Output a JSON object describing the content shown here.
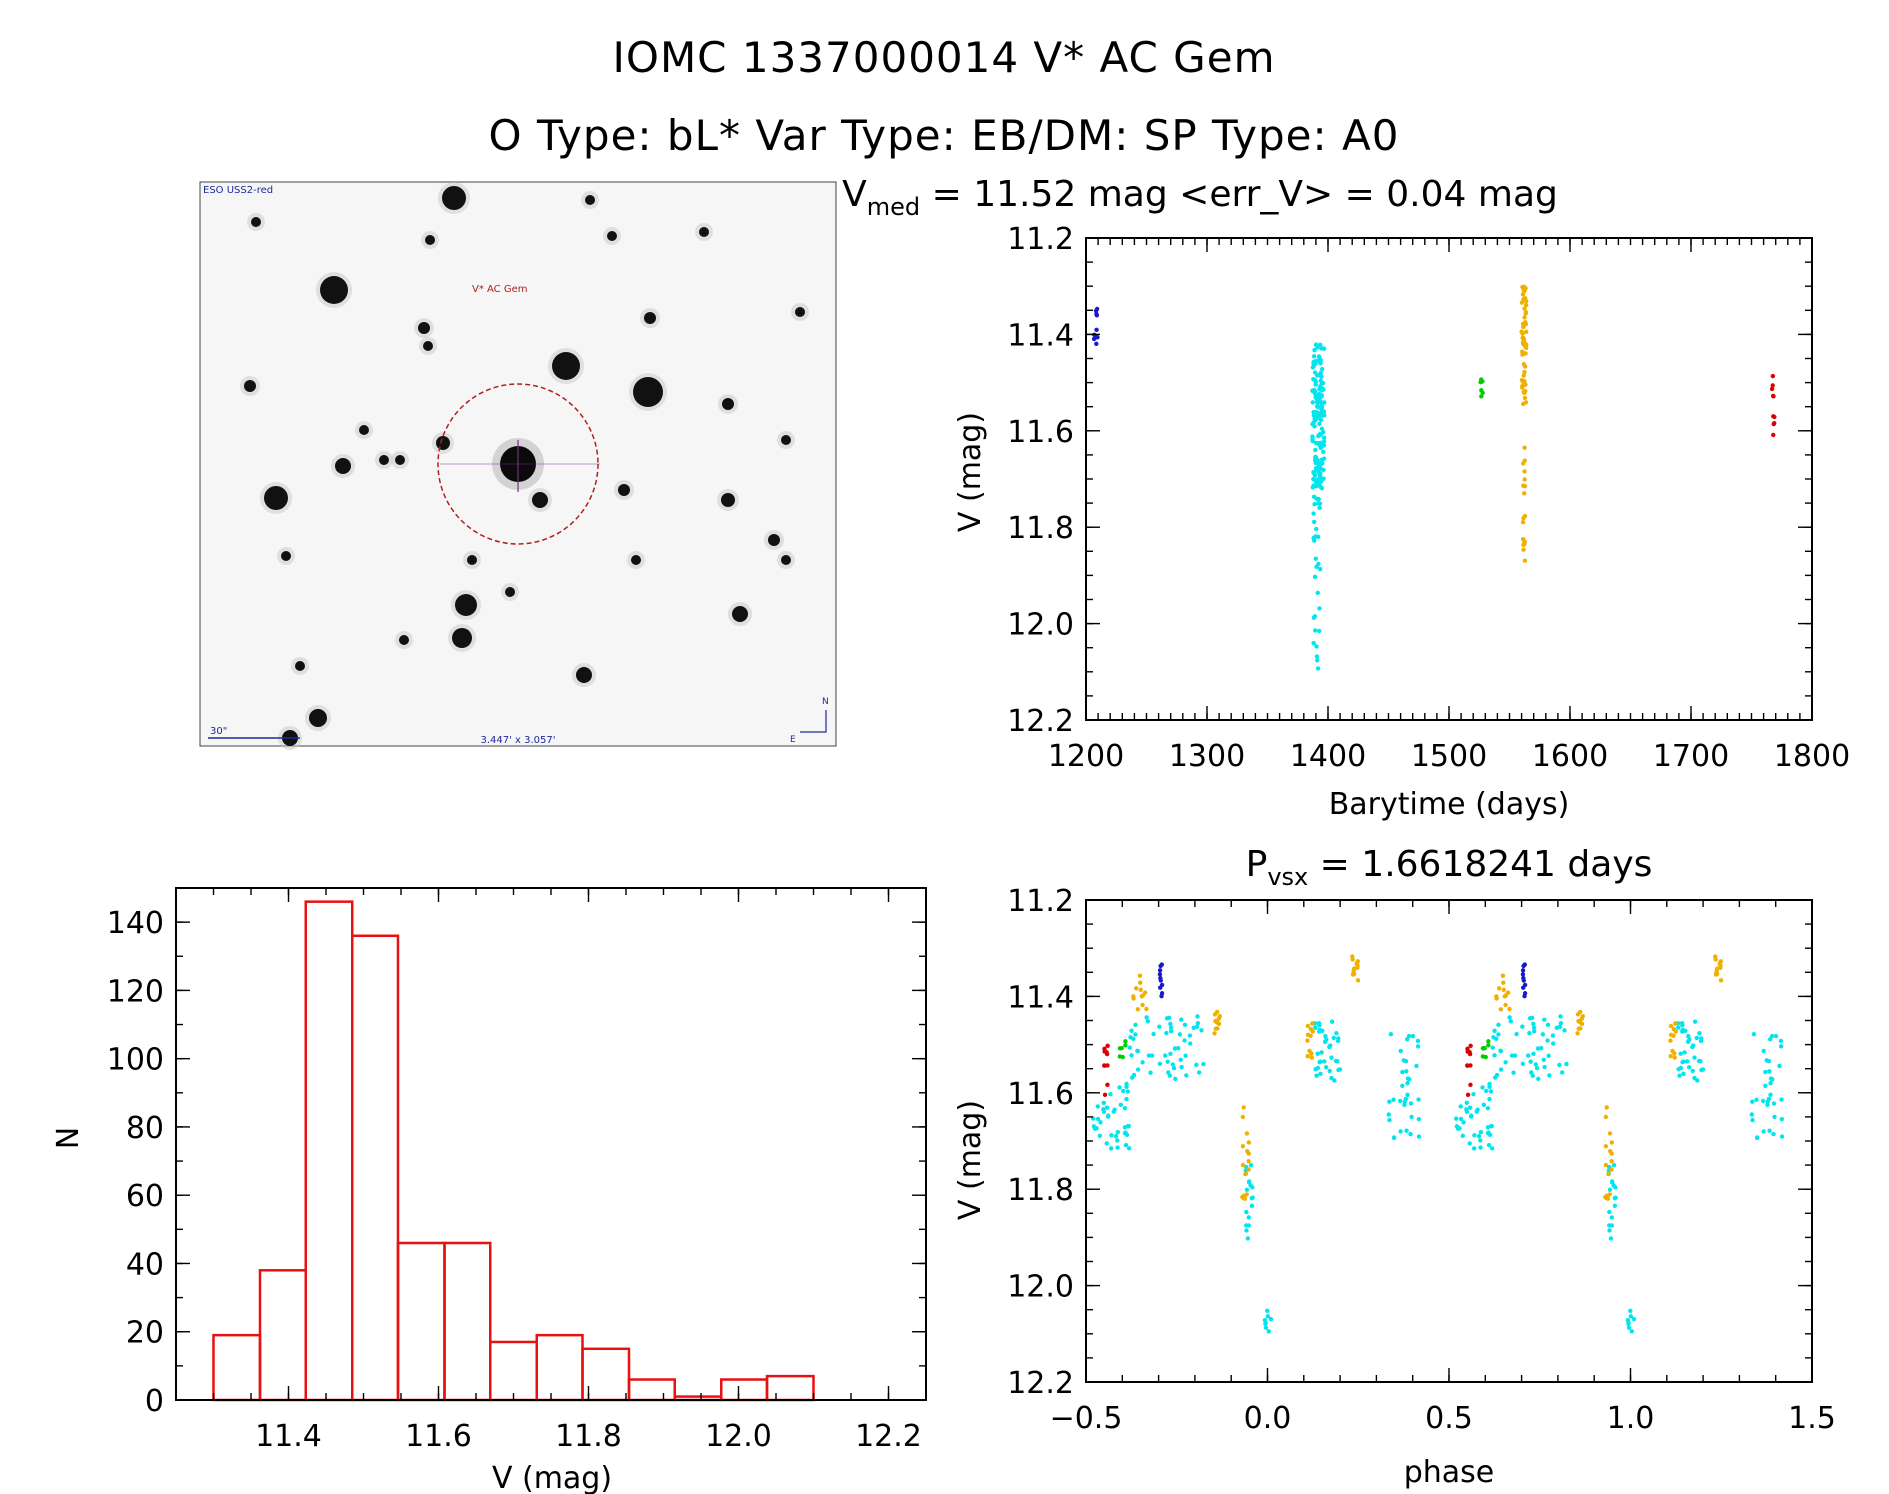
{
  "header": {
    "title_line1": "IOMC 1337000014    V* AC Gem",
    "title_line2": "O Type: bL*  Var Type: EB/DM:  SP Type: A0"
  },
  "finder": {
    "label_survey": "ESO USS2-red",
    "label_target": "V* AC Gem",
    "label_scale": "30\"",
    "label_fov": "3.447' x 3.057'",
    "label_north": "N",
    "label_east": "E",
    "colors": {
      "circle": "#b02020",
      "annot": "#1c2a9c",
      "target_label": "#b02020"
    }
  },
  "chart_data": [
    {
      "type": "scatter",
      "title": "Vmed = 11.52 mag <err_V> = 0.04 mag",
      "title_parts": {
        "lead": "V",
        "sub": "med",
        "rest": " = 11.52 mag <err_V> = 0.04 mag"
      },
      "xlabel": "Barytime (days)",
      "ylabel": "V (mag)",
      "xlim": [
        1200,
        1800
      ],
      "ylim": [
        11.2,
        12.2
      ],
      "y_inverted": true,
      "xticks": [
        1200,
        1300,
        1400,
        1500,
        1600,
        1700,
        1800
      ],
      "xtick_labels": [
        "1200",
        "1300",
        "1400",
        "1500",
        "1600",
        "1700",
        "1800"
      ],
      "yticks": [
        11.2,
        11.4,
        11.6,
        11.8,
        12.0,
        12.2
      ],
      "ytick_labels": [
        "11.2",
        "11.4",
        "11.6",
        "11.8",
        "12.0",
        "12.2"
      ],
      "series": [
        {
          "name": "season-1",
          "color": "#1818cc",
          "x_center": 1208,
          "x_spread": 2,
          "y_min": 11.33,
          "y_max": 11.42,
          "n": 10
        },
        {
          "name": "season-2",
          "color": "#00e5ee",
          "x_center": 1392,
          "x_spread": 5,
          "y_min": 11.42,
          "y_max": 11.72,
          "n": 160
        },
        {
          "name": "season-2-faint",
          "color": "#00e5ee",
          "x_center": 1391,
          "x_spread": 3,
          "y_min": 11.72,
          "y_max": 12.1,
          "n": 30
        },
        {
          "name": "season-3",
          "color": "#00cc00",
          "x_center": 1527,
          "x_spread": 1,
          "y_min": 11.49,
          "y_max": 11.53,
          "n": 6
        },
        {
          "name": "season-4",
          "color": "#f0b000",
          "x_center": 1562,
          "x_spread": 2,
          "y_min": 11.3,
          "y_max": 11.55,
          "n": 60
        },
        {
          "name": "season-4-faint",
          "color": "#f0b000",
          "x_center": 1562,
          "x_spread": 1,
          "y_min": 11.63,
          "y_max": 11.87,
          "n": 18
        },
        {
          "name": "season-5",
          "color": "#dd0000",
          "x_center": 1768,
          "x_spread": 1,
          "y_min": 11.47,
          "y_max": 11.61,
          "n": 10
        }
      ]
    },
    {
      "type": "bar",
      "subtype": "histogram",
      "title": "",
      "xlabel": "V (mag)",
      "ylabel": "N",
      "xlim": [
        11.25,
        12.25
      ],
      "ylim": [
        0,
        150
      ],
      "xticks": [
        11.4,
        11.6,
        11.8,
        12.0,
        12.2
      ],
      "xtick_labels": [
        "11.4",
        "11.6",
        "11.8",
        "12.0",
        "12.2"
      ],
      "yticks": [
        0,
        20,
        40,
        60,
        80,
        100,
        120,
        140
      ],
      "ytick_labels": [
        "0",
        "20",
        "40",
        "60",
        "80",
        "100",
        "120",
        "140"
      ],
      "bin_edges": [
        11.3,
        11.362,
        11.423,
        11.485,
        11.546,
        11.608,
        11.669,
        11.731,
        11.792,
        11.854,
        11.915,
        11.977,
        12.038,
        12.1
      ],
      "values": [
        19,
        38,
        146,
        136,
        46,
        46,
        17,
        19,
        15,
        6,
        1,
        6,
        7
      ],
      "color": "#e81010"
    },
    {
      "type": "scatter",
      "title": "Pvsx = 1.6618241 days",
      "title_parts": {
        "lead": "P",
        "sub": "vsx",
        "rest": " = 1.6618241 days"
      },
      "xlabel": "phase",
      "ylabel": "V (mag)",
      "xlim": [
        -0.5,
        1.5
      ],
      "ylim": [
        11.2,
        12.2
      ],
      "y_inverted": true,
      "xticks": [
        -0.5,
        0.0,
        0.5,
        1.0,
        1.5
      ],
      "xtick_labels": [
        "−0.5",
        "0.0",
        "0.5",
        "1.0",
        "1.5"
      ],
      "yticks": [
        11.2,
        11.4,
        11.6,
        11.8,
        12.0,
        12.2
      ],
      "ytick_labels": [
        "11.2",
        "11.4",
        "11.6",
        "11.8",
        "12.0",
        "12.2"
      ],
      "period": 1.0,
      "series": [
        {
          "name": "cyan-a",
          "color": "#00e5ee",
          "x_min": -0.49,
          "x_max": -0.38,
          "y_min": 11.58,
          "y_max": 11.72,
          "n": 40
        },
        {
          "name": "cyan-b",
          "color": "#00e5ee",
          "x_min": -0.38,
          "x_max": -0.17,
          "y_min": 11.44,
          "y_max": 11.58,
          "n": 55
        },
        {
          "name": "cyan-c",
          "color": "#00e5ee",
          "x_min": -0.06,
          "x_max": -0.04,
          "y_min": 11.75,
          "y_max": 11.92,
          "n": 18
        },
        {
          "name": "cyan-d",
          "color": "#00e5ee",
          "x_min": -0.01,
          "x_max": 0.01,
          "y_min": 12.05,
          "y_max": 12.1,
          "n": 8
        },
        {
          "name": "cyan-e",
          "color": "#00e5ee",
          "x_min": 0.13,
          "x_max": 0.2,
          "y_min": 11.45,
          "y_max": 11.58,
          "n": 35
        },
        {
          "name": "cyan-f",
          "color": "#00e5ee",
          "x_min": 0.33,
          "x_max": 0.42,
          "y_min": 11.47,
          "y_max": 11.7,
          "n": 35
        },
        {
          "name": "yellow-a",
          "color": "#f0b000",
          "x_min": -0.37,
          "x_max": -0.33,
          "y_min": 11.35,
          "y_max": 11.44,
          "n": 12
        },
        {
          "name": "yellow-b",
          "color": "#f0b000",
          "x_min": -0.15,
          "x_max": -0.13,
          "y_min": 11.42,
          "y_max": 11.48,
          "n": 10
        },
        {
          "name": "yellow-c",
          "color": "#f0b000",
          "x_min": -0.07,
          "x_max": -0.05,
          "y_min": 11.63,
          "y_max": 11.85,
          "n": 16
        },
        {
          "name": "yellow-d",
          "color": "#f0b000",
          "x_min": 0.11,
          "x_max": 0.13,
          "y_min": 11.45,
          "y_max": 11.53,
          "n": 12
        },
        {
          "name": "yellow-e",
          "color": "#f0b000",
          "x_min": 0.23,
          "x_max": 0.25,
          "y_min": 11.31,
          "y_max": 11.37,
          "n": 12
        },
        {
          "name": "blue",
          "color": "#1818cc",
          "x_min": -0.3,
          "x_max": -0.29,
          "y_min": 11.33,
          "y_max": 11.41,
          "n": 10
        },
        {
          "name": "green",
          "color": "#00cc00",
          "x_min": -0.41,
          "x_max": -0.39,
          "y_min": 11.49,
          "y_max": 11.53,
          "n": 6
        },
        {
          "name": "red",
          "color": "#dd0000",
          "x_min": -0.45,
          "x_max": -0.44,
          "y_min": 11.47,
          "y_max": 11.61,
          "n": 10
        }
      ]
    }
  ]
}
